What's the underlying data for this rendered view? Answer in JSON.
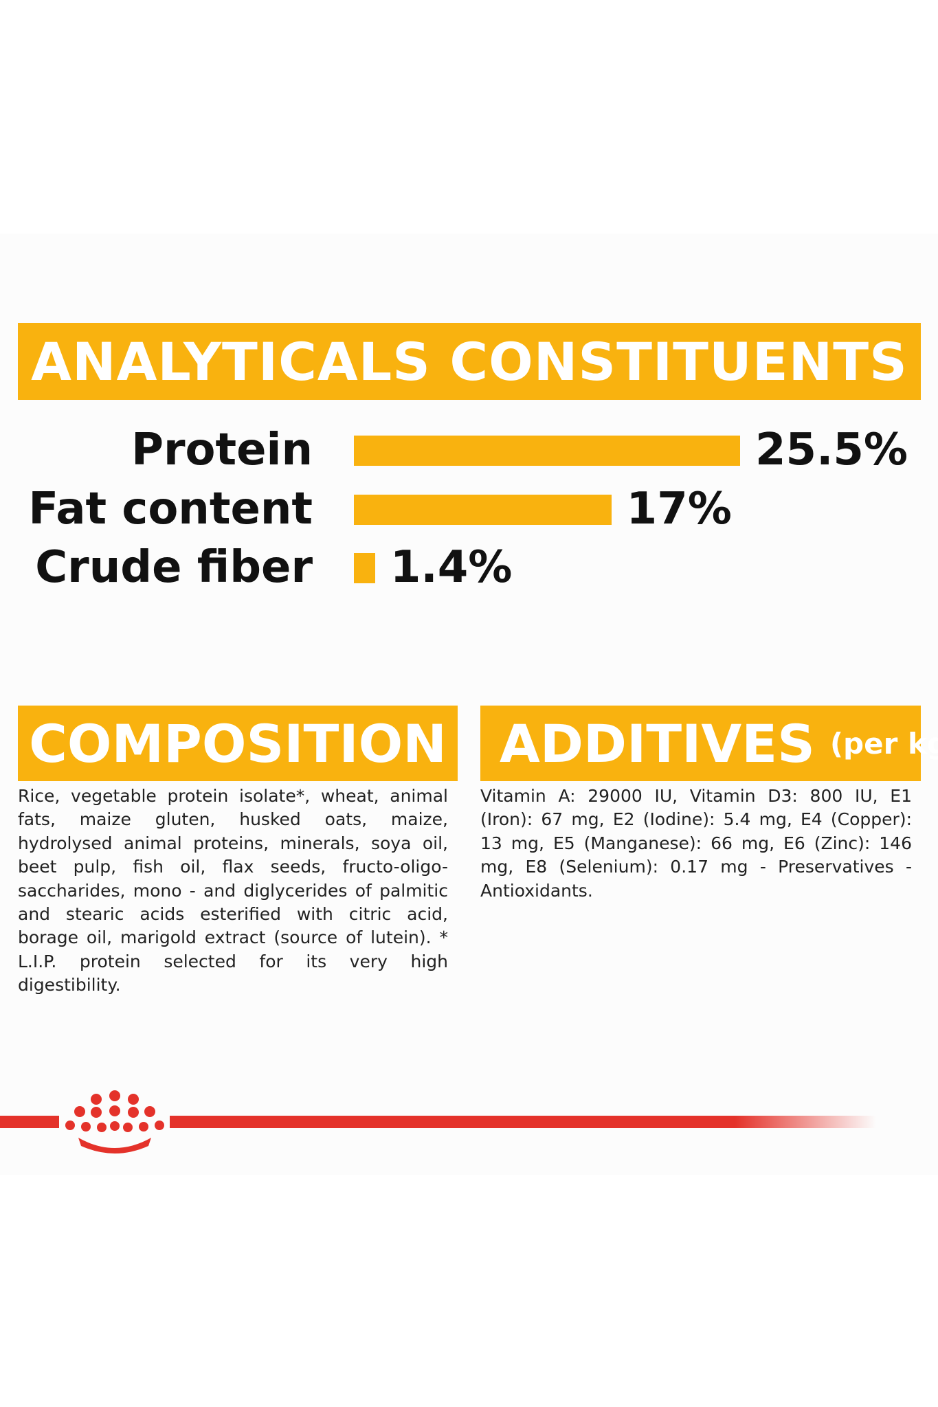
{
  "analytics": {
    "title": "ANALYTICALS CONSTITUENTS",
    "rows": [
      {
        "label": "Protein",
        "value_label": "25.5%",
        "value": 25.5
      },
      {
        "label": "Fat content",
        "value_label": "17%",
        "value": 17
      },
      {
        "label": "Crude fiber",
        "value_label": "1.4%",
        "value": 1.4
      }
    ]
  },
  "composition": {
    "title": "COMPOSITION",
    "text": "Rice, vegetable protein isolate*, wheat, animal fats, maize gluten, husked oats, maize, hydrolysed animal proteins, minerals, soya oil, beet pulp, fish oil, flax seeds, fructo-oligo-saccharides, mono - and diglycerides of palmitic and stearic acids esterified with citric acid, borage oil, marigold extract (source of lutein). * L.I.P. protein selected for its very high digestibility."
  },
  "additives": {
    "title": "ADDITIVES",
    "unit": "(per kg)",
    "text": "Vitamin A: 29000 IU, Vitamin D3: 800 IU, E1 (Iron): 67 mg, E2 (Iodine): 5.4 mg, E4 (Copper): 13 mg, E5 (Manganese): 66 mg, E6 (Zinc): 146 mg, E8 (Selenium): 0.17 mg - Preservatives - Antioxidants."
  },
  "colors": {
    "accent": "#f9b20f",
    "brand_red": "#e4322a",
    "text": "#111111"
  },
  "icons": {
    "brand_logo": "crown-icon"
  }
}
